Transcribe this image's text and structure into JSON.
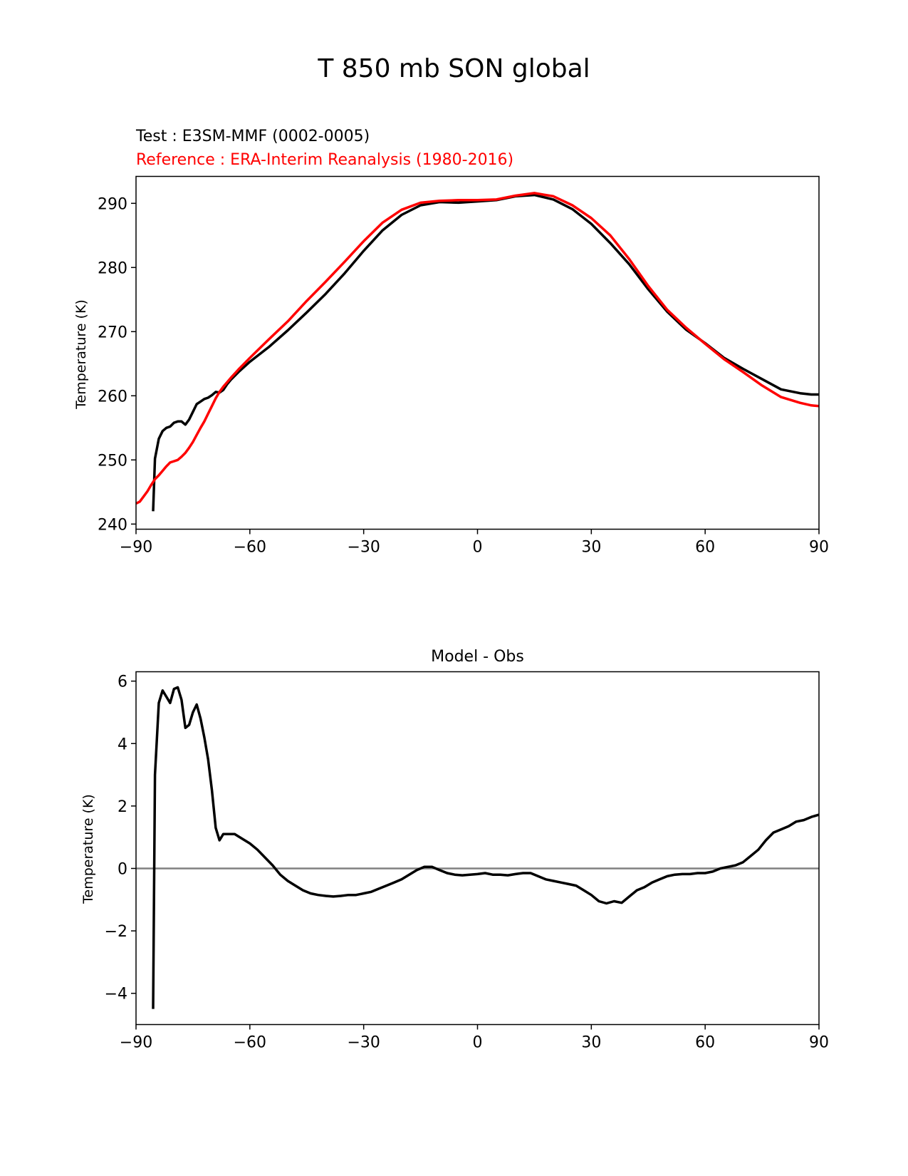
{
  "figure": {
    "title": "T 850 mb SON global"
  },
  "chart_data": [
    {
      "type": "line",
      "test_label": "Test : E3SM-MMF (0002-0005)",
      "reference_label": "Reference : ERA-Interim Reanalysis (1980-2016)",
      "xlabel": "",
      "ylabel": "Temperature (K)",
      "xlim": [
        -90,
        90
      ],
      "ylim": [
        239.2,
        294.2
      ],
      "xticks": [
        -90,
        -60,
        -30,
        0,
        30,
        60,
        90
      ],
      "xtick_labels": [
        "−90",
        "−60",
        "−30",
        "0",
        "30",
        "60",
        "90"
      ],
      "yticks": [
        240,
        250,
        260,
        270,
        280,
        290
      ],
      "ytick_labels": [
        "240",
        "250",
        "260",
        "270",
        "280",
        "290"
      ],
      "series": [
        {
          "name": "Test",
          "color": "#000000",
          "x": [
            -85.5,
            -85,
            -84,
            -83,
            -82,
            -81,
            -80,
            -79,
            -78,
            -77,
            -76,
            -75,
            -74,
            -73,
            -72,
            -71,
            -70,
            -69,
            -68,
            -67,
            -66,
            -65,
            -63,
            -60,
            -55,
            -50,
            -45,
            -40,
            -35,
            -30,
            -25,
            -20,
            -15,
            -10,
            -5,
            0,
            5,
            10,
            15,
            20,
            25,
            30,
            35,
            40,
            45,
            50,
            55,
            60,
            65,
            70,
            75,
            80,
            85,
            88,
            90
          ],
          "y": [
            242,
            250.2,
            253.3,
            254.5,
            255,
            255.2,
            255.8,
            256,
            256,
            255.5,
            256.3,
            257.5,
            258.7,
            259.1,
            259.5,
            259.7,
            260.1,
            260.6,
            260.5,
            260.9,
            261.8,
            262.5,
            263.7,
            265.3,
            267.6,
            270.2,
            273.0,
            275.9,
            279.1,
            282.6,
            285.8,
            288.2,
            289.7,
            290.2,
            290.1,
            290.3,
            290.5,
            291.1,
            291.3,
            290.6,
            289.1,
            286.8,
            283.8,
            280.5,
            276.6,
            273.1,
            270.3,
            268.2,
            265.9,
            264.2,
            262.6,
            261.0,
            260.4,
            260.2,
            260.2
          ]
        },
        {
          "name": "Reference",
          "color": "#ff0000",
          "x": [
            -90,
            -89,
            -88,
            -87,
            -86,
            -85,
            -84,
            -83,
            -82,
            -81,
            -80,
            -79,
            -78,
            -77,
            -76,
            -75,
            -74,
            -73,
            -72,
            -71,
            -70,
            -69,
            -68,
            -67,
            -66,
            -65,
            -63,
            -60,
            -55,
            -50,
            -45,
            -40,
            -35,
            -30,
            -25,
            -20,
            -15,
            -10,
            -5,
            0,
            5,
            10,
            15,
            20,
            25,
            30,
            35,
            40,
            45,
            50,
            55,
            60,
            65,
            70,
            75,
            80,
            85,
            88,
            90
          ],
          "y": [
            243.2,
            243.5,
            244.3,
            245.1,
            246.1,
            247.0,
            247.6,
            248.3,
            249.0,
            249.6,
            249.8,
            250.0,
            250.5,
            251.1,
            251.9,
            252.8,
            253.9,
            255.0,
            256.0,
            257.2,
            258.4,
            259.6,
            260.6,
            261.4,
            262.1,
            262.8,
            264.1,
            265.9,
            268.8,
            271.6,
            274.8,
            277.8,
            280.9,
            284.1,
            287.0,
            289.0,
            290.1,
            290.4,
            290.5,
            290.5,
            290.6,
            291.2,
            291.6,
            291.1,
            289.7,
            287.7,
            285.0,
            281.3,
            277.1,
            273.4,
            270.6,
            268.1,
            265.7,
            263.7,
            261.6,
            259.8,
            258.9,
            258.5,
            258.4
          ]
        }
      ]
    },
    {
      "type": "line",
      "title": "Model - Obs",
      "xlabel": "",
      "ylabel": "Temperature (K)",
      "xlim": [
        -90,
        90
      ],
      "ylim": [
        -5.0,
        6.3
      ],
      "xticks": [
        -90,
        -60,
        -30,
        0,
        30,
        60,
        90
      ],
      "xtick_labels": [
        "−90",
        "−60",
        "−30",
        "0",
        "30",
        "60",
        "90"
      ],
      "yticks": [
        -4,
        -2,
        0,
        2,
        4,
        6
      ],
      "ytick_labels": [
        "−4",
        "−2",
        "0",
        "2",
        "4",
        "6"
      ],
      "zero_line_color": "#808080",
      "series": [
        {
          "name": "Model - Obs",
          "color": "#000000",
          "x": [
            -85.5,
            -85,
            -84,
            -83,
            -82,
            -81,
            -80,
            -79,
            -78,
            -77,
            -76,
            -75,
            -74,
            -73,
            -72,
            -71,
            -70,
            -69,
            -68,
            -67,
            -66,
            -64,
            -62,
            -60,
            -58,
            -56,
            -54,
            -52,
            -50,
            -48,
            -46,
            -44,
            -42,
            -40,
            -38,
            -36,
            -34,
            -32,
            -30,
            -28,
            -26,
            -24,
            -22,
            -20,
            -18,
            -16,
            -14,
            -12,
            -10,
            -8,
            -6,
            -4,
            -2,
            0,
            2,
            4,
            6,
            8,
            10,
            12,
            14,
            16,
            18,
            20,
            22,
            24,
            26,
            28,
            30,
            32,
            34,
            36,
            38,
            40,
            42,
            44,
            46,
            48,
            50,
            52,
            54,
            56,
            58,
            60,
            62,
            64,
            66,
            68,
            70,
            72,
            74,
            76,
            78,
            80,
            82,
            84,
            86,
            88,
            90
          ],
          "y": [
            -4.5,
            3.0,
            5.3,
            5.7,
            5.5,
            5.3,
            5.75,
            5.8,
            5.4,
            4.5,
            4.6,
            5.0,
            5.25,
            4.8,
            4.2,
            3.5,
            2.5,
            1.3,
            0.9,
            1.1,
            1.1,
            1.1,
            0.95,
            0.8,
            0.6,
            0.35,
            0.1,
            -0.2,
            -0.4,
            -0.55,
            -0.7,
            -0.8,
            -0.85,
            -0.88,
            -0.9,
            -0.88,
            -0.85,
            -0.85,
            -0.8,
            -0.75,
            -0.65,
            -0.55,
            -0.45,
            -0.35,
            -0.2,
            -0.05,
            0.05,
            0.05,
            -0.05,
            -0.15,
            -0.2,
            -0.22,
            -0.2,
            -0.18,
            -0.15,
            -0.2,
            -0.2,
            -0.22,
            -0.18,
            -0.15,
            -0.15,
            -0.25,
            -0.35,
            -0.4,
            -0.45,
            -0.5,
            -0.55,
            -0.7,
            -0.85,
            -1.05,
            -1.12,
            -1.05,
            -1.1,
            -0.9,
            -0.7,
            -0.6,
            -0.45,
            -0.35,
            -0.25,
            -0.2,
            -0.18,
            -0.18,
            -0.15,
            -0.15,
            -0.1,
            0.0,
            0.05,
            0.1,
            0.2,
            0.4,
            0.6,
            0.9,
            1.15,
            1.25,
            1.35,
            1.5,
            1.55,
            1.65,
            1.72
          ]
        }
      ]
    }
  ]
}
